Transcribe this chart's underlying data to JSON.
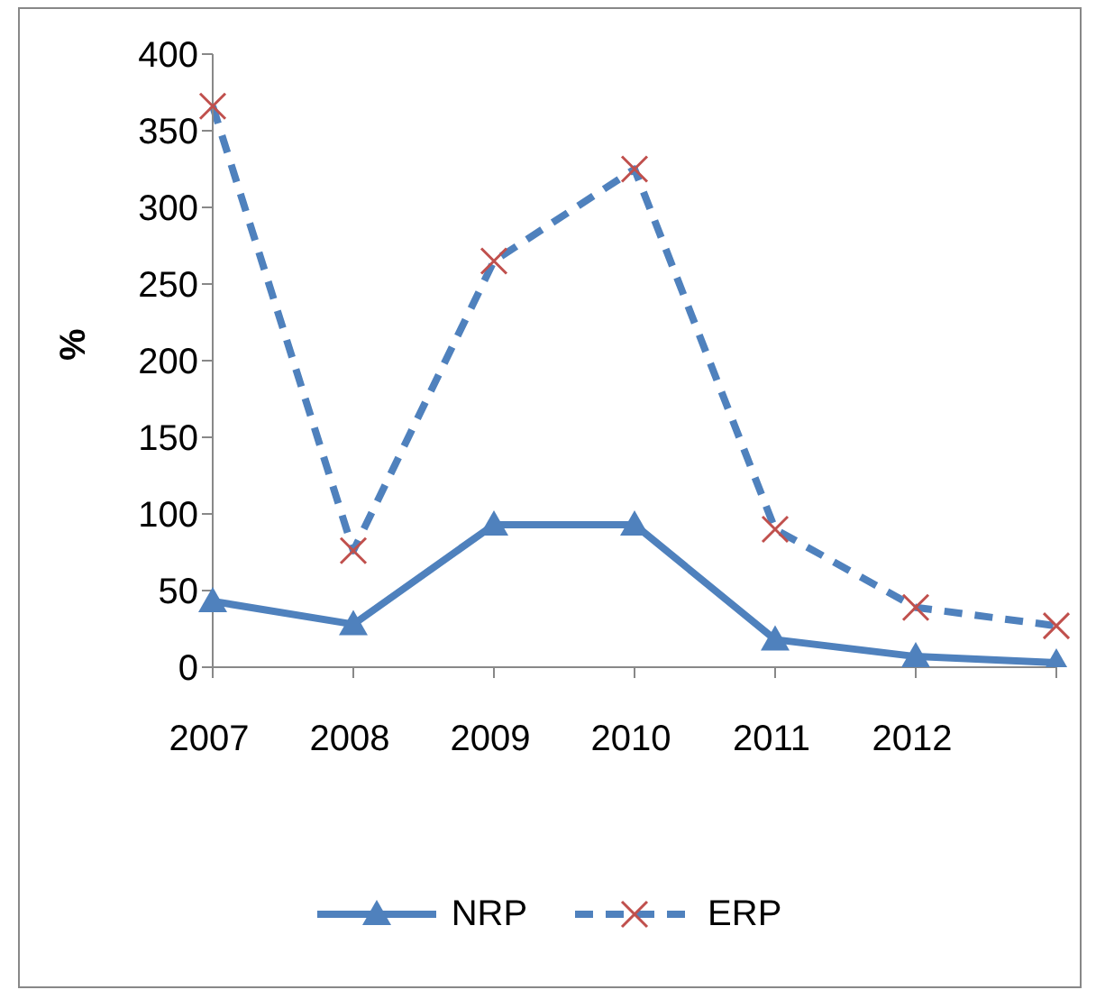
{
  "chart_data": {
    "type": "line",
    "ylabel": "%",
    "categories": [
      "2007",
      "2008",
      "2009",
      "2010",
      "2011",
      "2012",
      null
    ],
    "series": [
      {
        "name": "NRP",
        "color": "#4f81bd",
        "marker": "triangle",
        "line_style": "solid",
        "values": [
          43,
          28,
          93,
          93,
          18,
          7,
          3
        ]
      },
      {
        "name": "ERP",
        "color": "#4f81bd",
        "colors": [
          "#c0504d",
          "#c0504d",
          "#c0504d",
          "#c0504d",
          "#c0504d",
          "#c0504d",
          "#c0504d"
        ],
        "marker": "cross",
        "line_style": "dashed",
        "values": [
          366,
          76,
          265,
          325,
          90,
          39,
          27
        ]
      }
    ],
    "ylim": [
      0,
      400
    ],
    "yticks": [
      0,
      50,
      100,
      150,
      200,
      250,
      300,
      350,
      400
    ],
    "grid": false,
    "legend": "bottom"
  }
}
